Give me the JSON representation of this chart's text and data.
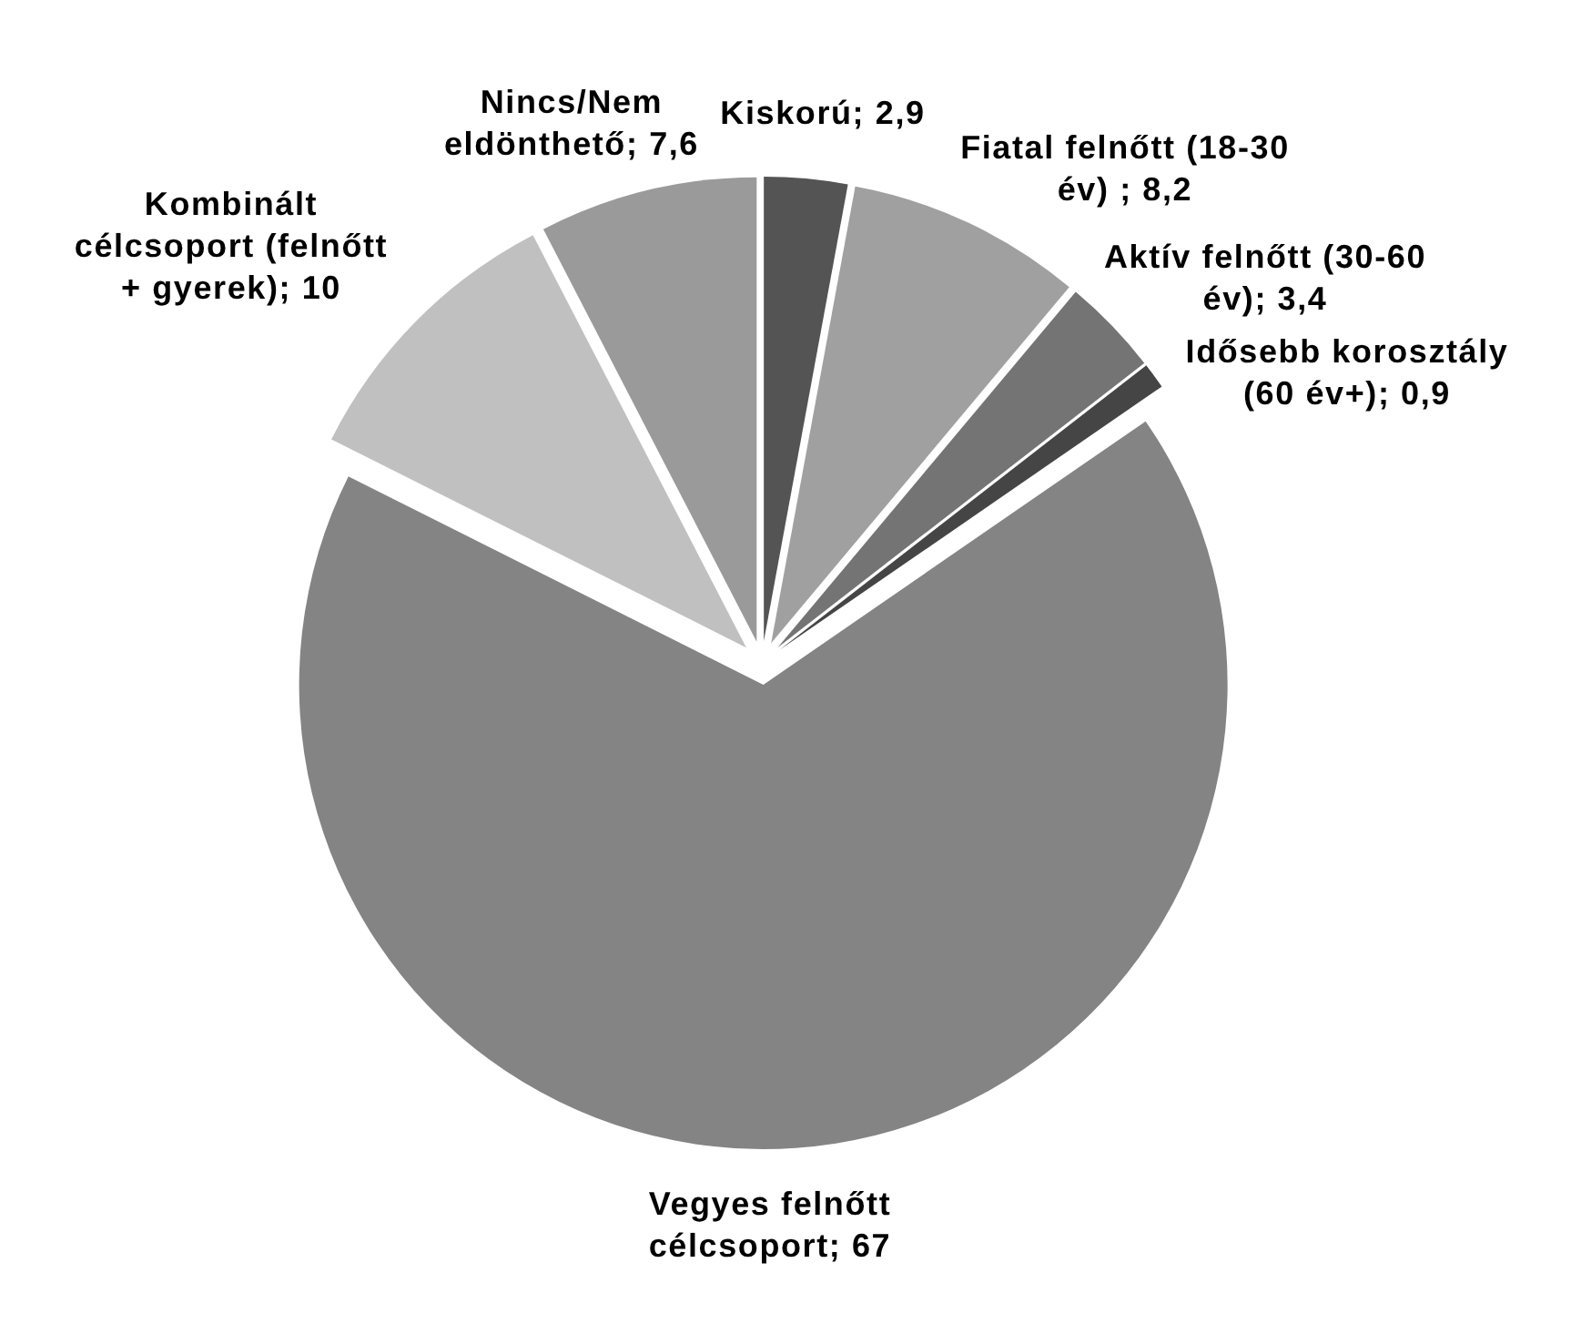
{
  "chart_data": {
    "type": "pie",
    "categories": [
      "Kiskorú",
      "Fiatal felnőtt (18-30 év) ",
      "Aktív felnőtt (30-60 év)",
      "Idősebb korosztály (60 év+)",
      "Vegyes felnőtt célcsoport",
      "Kombinált célcsoport (felnőtt + gyerek)",
      "Nincs/Nem eldönthető"
    ],
    "values": [
      2.9,
      8.2,
      3.4,
      0.9,
      67,
      10,
      7.6
    ],
    "value_labels": [
      "2,9",
      "8,2",
      "3,4",
      "0,9",
      "67",
      "10",
      "7,6"
    ],
    "colors": [
      "#545454",
      "#a0a0a0",
      "#747474",
      "#454545",
      "#848484",
      "#c0c0c0",
      "#9a9a9a"
    ]
  }
}
